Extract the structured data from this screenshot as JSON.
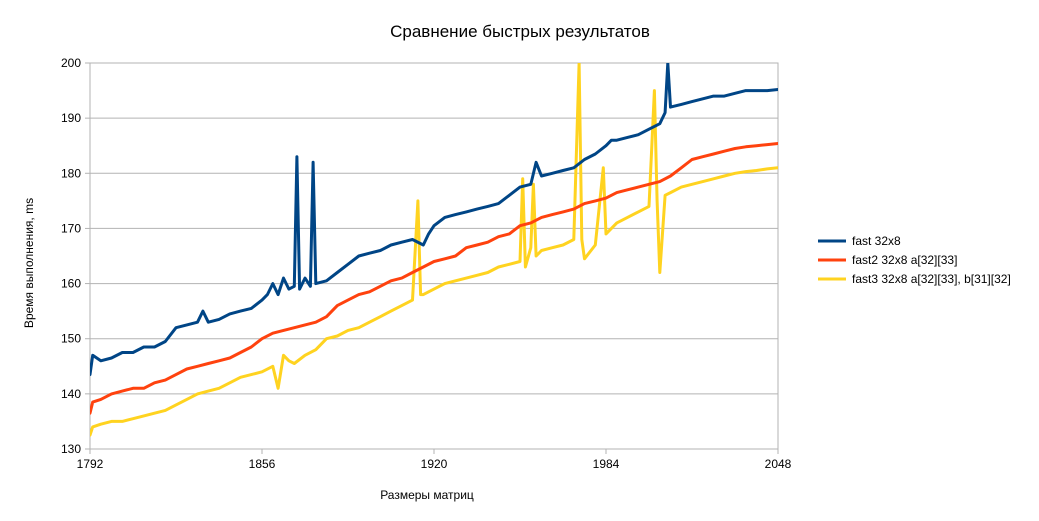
{
  "chart_data": {
    "type": "line",
    "title": "Сравнение быстрых результатов",
    "xlabel": "Размеры матриц",
    "ylabel": "Время выполнения, ms",
    "xlim": [
      1792,
      2048
    ],
    "ylim": [
      130,
      200
    ],
    "x_ticks": [
      "1792",
      "1856",
      "1920",
      "1984",
      "2048"
    ],
    "y_ticks": [
      "130",
      "140",
      "150",
      "160",
      "170",
      "180",
      "190",
      "200"
    ],
    "grid": true,
    "legend_position": "right",
    "series": [
      {
        "name": "fast 32x8",
        "color": "#004586",
        "x": [
          1792,
          1793,
          1796,
          1800,
          1804,
          1808,
          1812,
          1816,
          1820,
          1824,
          1828,
          1832,
          1834,
          1836,
          1840,
          1844,
          1848,
          1852,
          1856,
          1858,
          1860,
          1862,
          1864,
          1866,
          1868,
          1869,
          1870,
          1872,
          1874,
          1875,
          1876,
          1880,
          1884,
          1888,
          1892,
          1896,
          1900,
          1904,
          1908,
          1912,
          1916,
          1918,
          1920,
          1924,
          1928,
          1932,
          1936,
          1940,
          1944,
          1948,
          1952,
          1956,
          1958,
          1960,
          1964,
          1968,
          1972,
          1976,
          1980,
          1984,
          1986,
          1988,
          1992,
          1996,
          2000,
          2004,
          2006,
          2007,
          2008,
          2012,
          2016,
          2020,
          2024,
          2028,
          2032,
          2036,
          2040,
          2044,
          2048
        ],
        "values": [
          143.5,
          147,
          146,
          146.5,
          147.5,
          147.5,
          148.5,
          148.5,
          149.5,
          152,
          152.5,
          153,
          155,
          153,
          153.5,
          154.5,
          155,
          155.5,
          157,
          158,
          160,
          158,
          161,
          159,
          159.5,
          183,
          159,
          161,
          159.5,
          182,
          160,
          160.5,
          162,
          163.5,
          165,
          165.5,
          166,
          167,
          167.5,
          168,
          167,
          169,
          170.5,
          172,
          172.5,
          173,
          173.5,
          174,
          174.5,
          176,
          177.5,
          178,
          182,
          179.5,
          180,
          180.5,
          181,
          182.5,
          183.5,
          185,
          186,
          186,
          186.5,
          187,
          188,
          189,
          191,
          200,
          192,
          192.5,
          193,
          193.5,
          194,
          194,
          194.5,
          195,
          195,
          195,
          195.2
        ]
      },
      {
        "name": "fast2 32x8 a[32][33]",
        "color": "#ff420e",
        "x": [
          1792,
          1793,
          1796,
          1800,
          1804,
          1808,
          1812,
          1816,
          1820,
          1824,
          1828,
          1832,
          1836,
          1840,
          1844,
          1848,
          1852,
          1856,
          1860,
          1864,
          1868,
          1872,
          1876,
          1880,
          1884,
          1888,
          1892,
          1896,
          1900,
          1904,
          1908,
          1912,
          1916,
          1920,
          1924,
          1928,
          1932,
          1936,
          1940,
          1944,
          1948,
          1952,
          1956,
          1960,
          1964,
          1968,
          1972,
          1976,
          1980,
          1984,
          1988,
          1992,
          1996,
          2000,
          2004,
          2008,
          2012,
          2016,
          2020,
          2024,
          2028,
          2032,
          2036,
          2040,
          2044,
          2048
        ],
        "values": [
          136.5,
          138.5,
          139,
          140,
          140.5,
          141,
          141,
          142,
          142.5,
          143.5,
          144.5,
          145,
          145.5,
          146,
          146.5,
          147.5,
          148.5,
          150,
          151,
          151.5,
          152,
          152.5,
          153,
          154,
          156,
          157,
          158,
          158.5,
          159.5,
          160.5,
          161,
          162,
          163,
          164,
          164.5,
          165,
          166.5,
          167,
          167.5,
          168.5,
          169,
          170.5,
          171,
          172,
          172.5,
          173,
          173.5,
          174.5,
          175,
          175.5,
          176.5,
          177,
          177.5,
          178,
          178.5,
          179.5,
          181,
          182.5,
          183,
          183.5,
          184,
          184.5,
          184.8,
          185,
          185.2,
          185.4
        ]
      },
      {
        "name": "fast3 32x8 a[32][33], b[31][32]",
        "color": "#ffd320",
        "x": [
          1792,
          1793,
          1796,
          1800,
          1804,
          1808,
          1812,
          1816,
          1820,
          1824,
          1828,
          1832,
          1836,
          1840,
          1844,
          1848,
          1852,
          1856,
          1860,
          1862,
          1864,
          1866,
          1868,
          1872,
          1876,
          1880,
          1884,
          1888,
          1892,
          1896,
          1900,
          1904,
          1908,
          1912,
          1914,
          1915,
          1916,
          1920,
          1924,
          1928,
          1932,
          1936,
          1940,
          1944,
          1948,
          1952,
          1953,
          1954,
          1956,
          1957,
          1958,
          1960,
          1964,
          1968,
          1972,
          1974,
          1975,
          1976,
          1980,
          1983,
          1984,
          1986,
          1988,
          1992,
          1996,
          2000,
          2002,
          2003,
          2004,
          2006,
          2008,
          2012,
          2016,
          2020,
          2024,
          2028,
          2032,
          2036,
          2040,
          2044,
          2048
        ],
        "values": [
          132.5,
          134,
          134.5,
          135,
          135,
          135.5,
          136,
          136.5,
          137,
          138,
          139,
          140,
          140.5,
          141,
          142,
          143,
          143.5,
          144,
          145,
          141,
          147,
          146,
          145.5,
          147,
          148,
          150,
          150.5,
          151.5,
          152,
          153,
          154,
          155,
          156,
          157,
          175,
          158,
          158,
          159,
          160,
          160.5,
          161,
          161.5,
          162,
          163,
          163.5,
          164,
          179,
          163,
          166.5,
          178,
          165,
          166,
          166.5,
          167,
          168,
          200,
          168,
          164.5,
          167,
          181,
          169,
          170,
          171,
          172,
          173,
          174,
          195,
          175,
          162,
          176,
          176.5,
          177.5,
          178,
          178.5,
          179,
          179.5,
          180,
          180.3,
          180.5,
          180.8,
          181
        ]
      }
    ]
  }
}
